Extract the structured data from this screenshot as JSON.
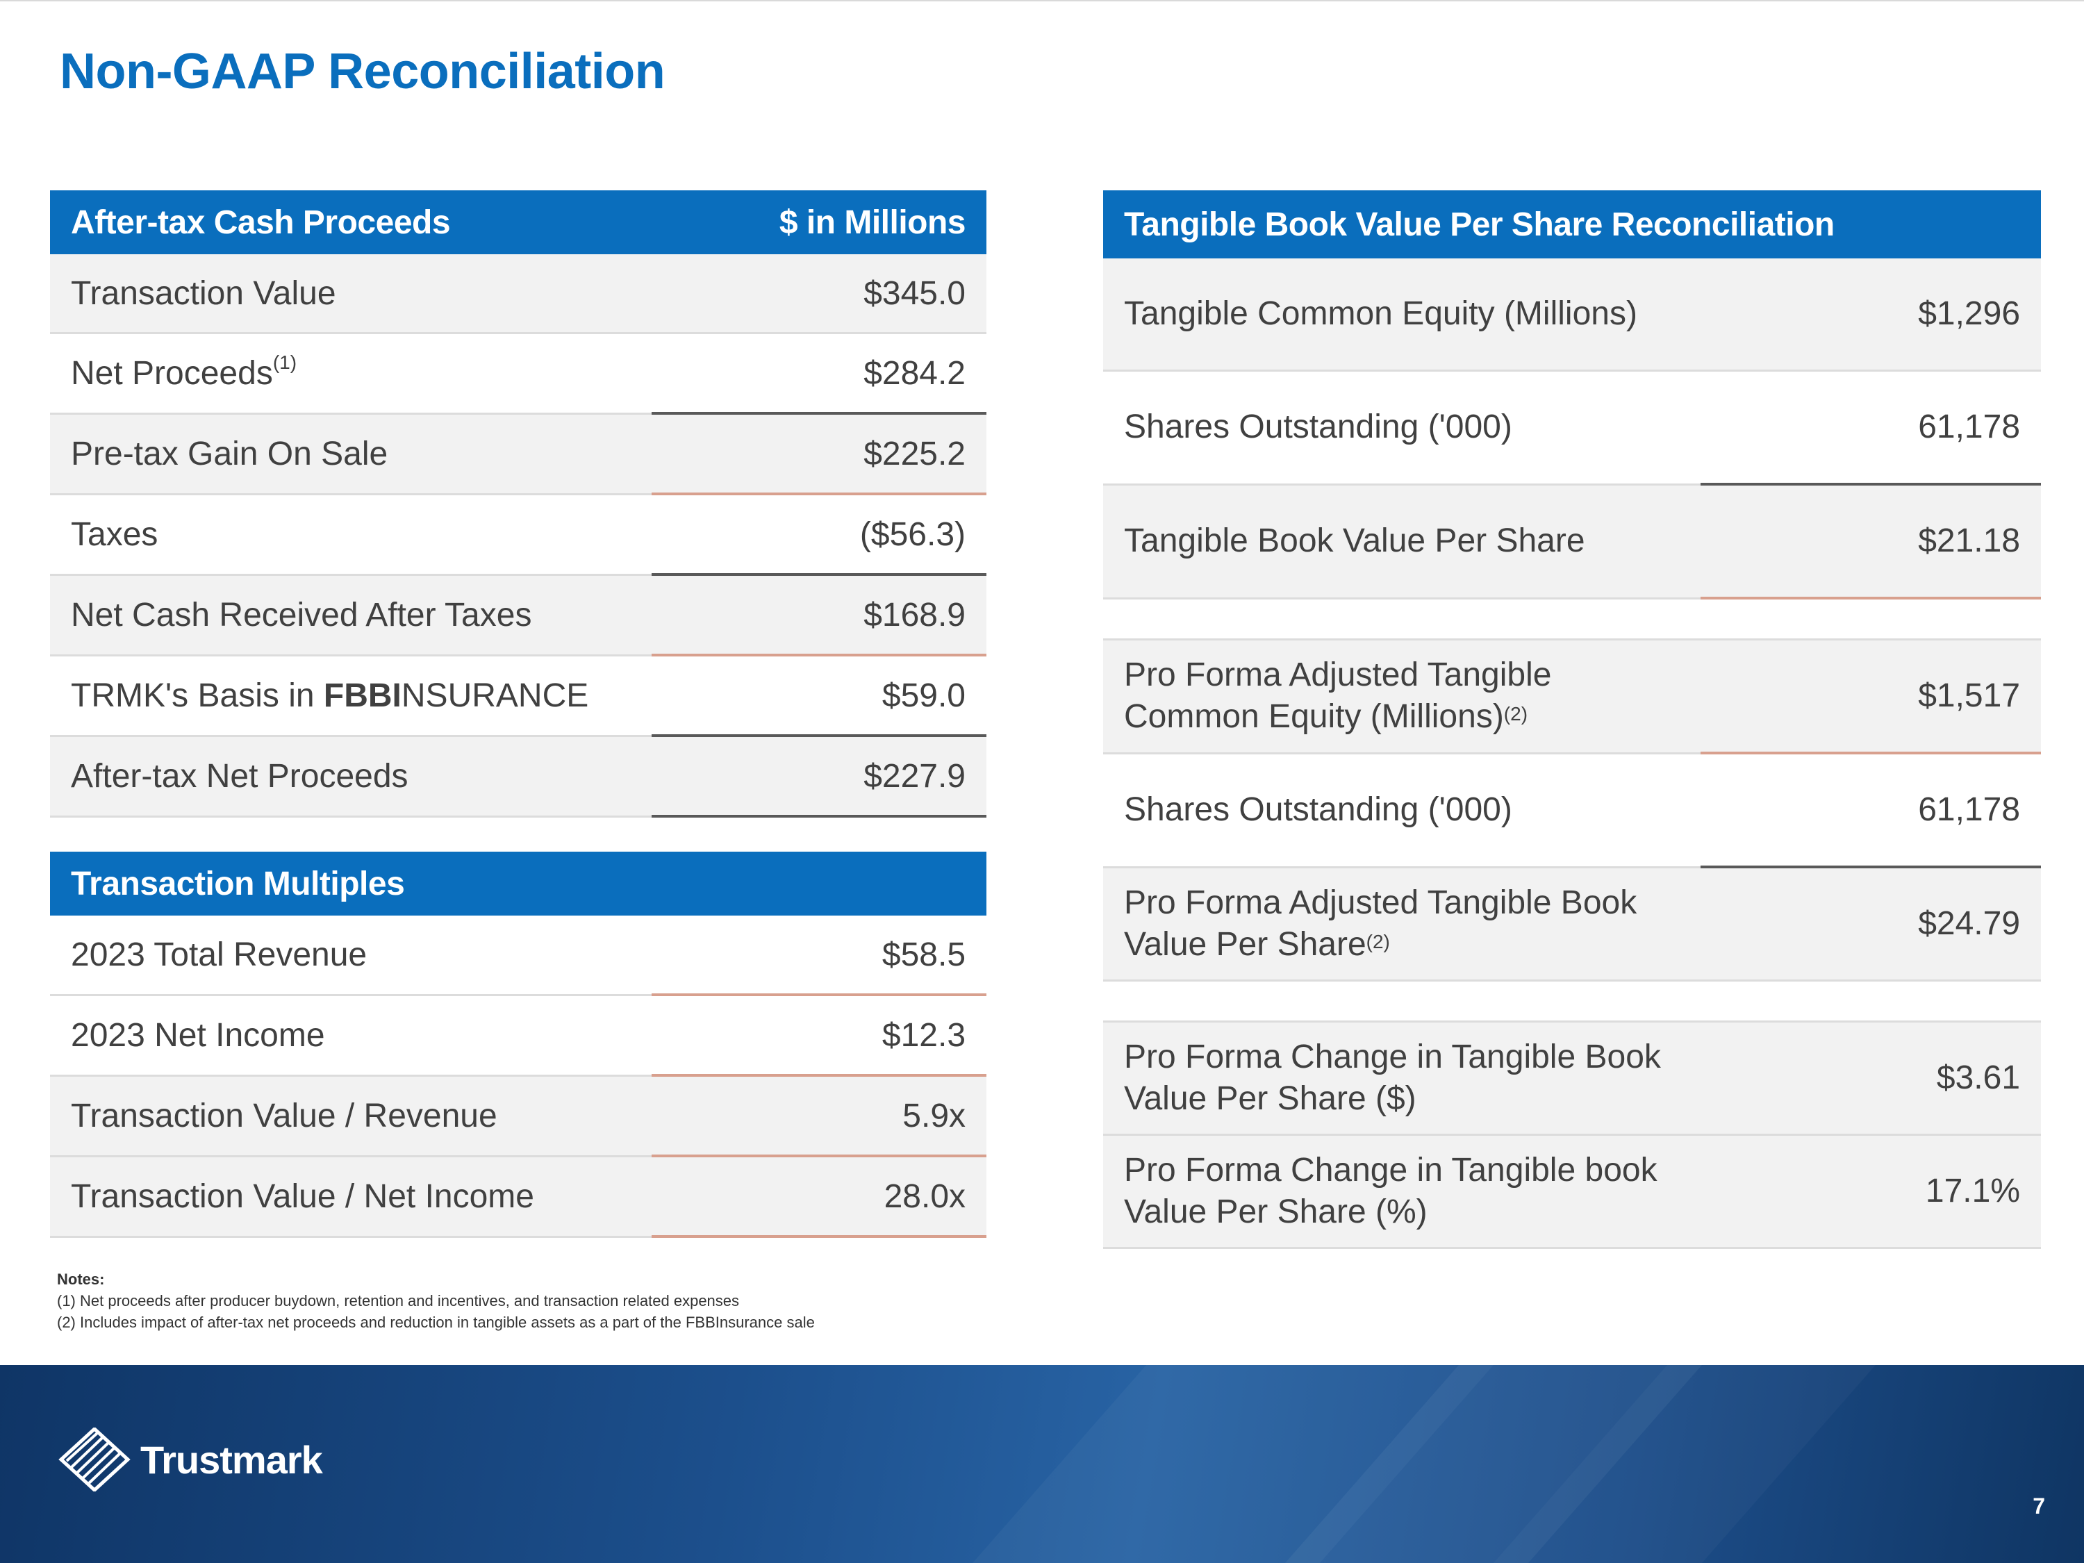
{
  "page": {
    "title": "Non-GAAP Reconciliation",
    "page_number": "7"
  },
  "cash_proceeds": {
    "header": {
      "label": "After-tax Cash Proceeds",
      "unit": "$ in Millions"
    },
    "rows": [
      {
        "label": "Transaction Value",
        "value": "$345.0"
      },
      {
        "label": "Net Proceeds",
        "sup": "(1)",
        "value": "$284.2"
      },
      {
        "label": "Pre-tax Gain On Sale",
        "value": "$225.2"
      },
      {
        "label": "Taxes",
        "value": "($56.3)"
      },
      {
        "label": "Net Cash Received After Taxes",
        "value": "$168.9"
      },
      {
        "label_prefix": "TRMK's Basis in",
        "brand_bold": "FBBI",
        "brand_rest": "NSURANCE",
        "value": "$59.0"
      },
      {
        "label": "After-tax Net Proceeds",
        "value": "$227.9"
      }
    ]
  },
  "multiples": {
    "header": {
      "label": "Transaction Multiples"
    },
    "rows": [
      {
        "label": "2023 Total Revenue",
        "value": "$58.5"
      },
      {
        "label": "2023 Net Income",
        "value": "$12.3"
      },
      {
        "label": "Transaction Value / Revenue",
        "value": "5.9x"
      },
      {
        "label": "Transaction Value / Net Income",
        "value": "28.0x"
      }
    ]
  },
  "tbv": {
    "header": {
      "label": "Tangible Book Value Per Share Reconciliation"
    },
    "rows": [
      {
        "label": "Tangible Common Equity (Millions)",
        "value": "$1,296"
      },
      {
        "label": "Shares Outstanding ('000)",
        "value": "61,178"
      },
      {
        "label": "Tangible Book Value Per Share",
        "value": "$21.18"
      },
      {
        "line1": "Pro Forma Adjusted Tangible",
        "line2": "Common Equity (Millions)",
        "sup": "(2)",
        "value": "$1,517"
      },
      {
        "label": "Shares Outstanding ('000)",
        "value": "61,178"
      },
      {
        "line1": "Pro Forma Adjusted Tangible Book",
        "line2": "Value Per Share",
        "sup": "(2)",
        "value": "$24.79"
      },
      {
        "line1": "Pro Forma Change in Tangible Book",
        "line2": "Value Per Share ($)",
        "value": "$3.61"
      },
      {
        "line1": "Pro Forma Change in Tangible book",
        "line2": "Value Per Share (%)",
        "value": "17.1%"
      }
    ]
  },
  "notes": {
    "heading": "Notes:",
    "items": [
      "(1) Net proceeds after producer buydown, retention and incentives, and transaction related expenses",
      "(2) Includes impact of after-tax net proceeds and reduction in tangible assets as a part of the FBBInsurance sale"
    ]
  },
  "footer": {
    "brand": "Trustmark"
  },
  "colors": {
    "accent": "#0a6ebd",
    "row_shade": "#f2f2f2",
    "line_dark": "#595959",
    "line_accent": "#d8a08e"
  }
}
